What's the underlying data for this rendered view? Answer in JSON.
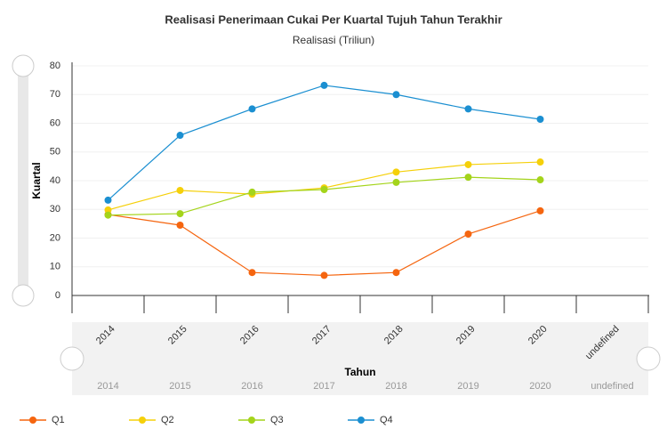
{
  "chart_data": {
    "type": "line",
    "title": "Realisasi Penerimaan Cukai Per Kuartal Tujuh Tahun Terakhir",
    "subtitle": "Realisasi (Triliun)",
    "y_label": "Kuartal",
    "x_label": "Tahun",
    "categories": [
      "2014",
      "2015",
      "2016",
      "2017",
      "2018",
      "2019",
      "2020",
      "undefined"
    ],
    "series": [
      {
        "name": "Q1",
        "color": "#f5650f",
        "values": [
          28.2,
          24.5,
          8,
          7,
          8,
          21.4,
          29.5,
          null
        ]
      },
      {
        "name": "Q2",
        "color": "#f5d00a",
        "values": [
          29.8,
          36.6,
          35.3,
          37.5,
          43,
          45.6,
          46.5,
          null
        ]
      },
      {
        "name": "Q3",
        "color": "#a4d41b",
        "values": [
          28,
          28.5,
          36,
          36.9,
          39.4,
          41.2,
          40.3,
          null
        ]
      },
      {
        "name": "Q4",
        "color": "#1b8fd1",
        "values": [
          33.2,
          55.8,
          65,
          73.2,
          70,
          65,
          61.4,
          null
        ]
      }
    ],
    "ylim": [
      0,
      80
    ],
    "yticks": [
      0,
      10,
      20,
      30,
      40,
      50,
      60,
      70,
      80
    ],
    "grid": true,
    "legend": "bottom"
  }
}
